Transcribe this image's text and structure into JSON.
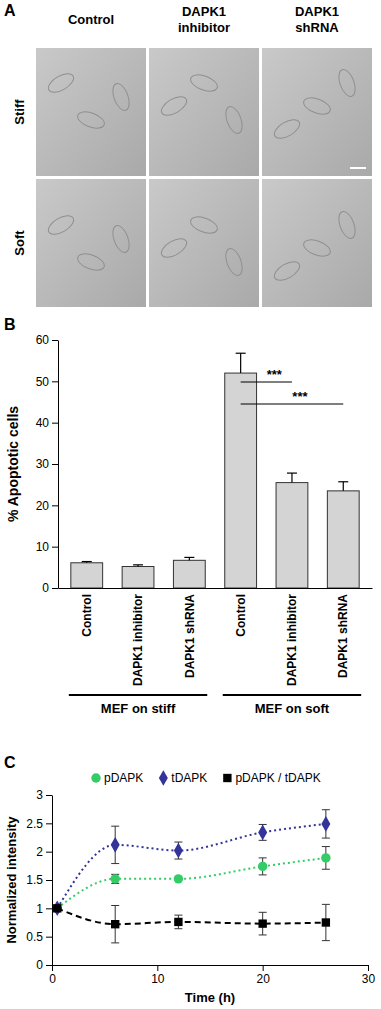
{
  "panel_a": {
    "label": "A",
    "columns": [
      "Control",
      "DAPK1 inhibitor",
      "DAPK1 shRNA"
    ],
    "rows": [
      "Stiff",
      "Soft"
    ]
  },
  "chart_data": [
    {
      "type": "bar",
      "title": "B",
      "categories": [
        "Control",
        "DAPK1 inhibitor",
        "DAPK1 shRNA",
        "Control",
        "DAPK1 inhibitor",
        "DAPK1 shRNA"
      ],
      "values": [
        6.1,
        5.2,
        6.7,
        52,
        25.5,
        23.5
      ],
      "errors": [
        0.3,
        0.4,
        0.7,
        4.8,
        2.3,
        2.2
      ],
      "color": "#d4d4d4",
      "ylim": [
        0,
        60
      ],
      "yticks": [
        0,
        10,
        20,
        30,
        40,
        50,
        60
      ],
      "y_label": "% Apoptotic cells",
      "groups": [
        {
          "label": "MEF on stiff",
          "from": 0,
          "to": 2
        },
        {
          "label": "MEF on soft",
          "from": 3,
          "to": 5
        }
      ],
      "annotations": [
        {
          "text": "***",
          "from": 3,
          "to": 4
        },
        {
          "text": "***",
          "from": 3,
          "to": 5
        }
      ]
    },
    {
      "type": "scatter",
      "title": "C",
      "x": [
        0.5,
        6,
        12,
        20,
        26
      ],
      "series": [
        {
          "name": "pDAPK",
          "color": "#33cc66",
          "marker": "circle",
          "line_style": "dotted",
          "values": [
            1,
            1.52,
            1.52,
            1.74,
            1.89
          ],
          "errors": [
            0,
            0.08,
            0,
            0.15,
            0.2
          ]
        },
        {
          "name": "tDAPK",
          "color": "#333399",
          "marker": "diamond",
          "line_style": "dotted",
          "values": [
            1,
            2.12,
            2.02,
            2.34,
            2.49
          ],
          "errors": [
            0,
            0.33,
            0.15,
            0.14,
            0.25
          ]
        },
        {
          "name": "pDAPK / tDAPK",
          "color": "#000000",
          "marker": "square",
          "line_style": "dashed",
          "values": [
            1,
            0.72,
            0.76,
            0.73,
            0.75
          ],
          "errors": [
            0,
            0.33,
            0.12,
            0.2,
            0.32
          ]
        }
      ],
      "xlim": [
        0,
        30
      ],
      "xticks": [
        0,
        10,
        20,
        30
      ],
      "ylim": [
        0,
        3
      ],
      "yticks": [
        0,
        0.5,
        1,
        1.5,
        2,
        2.5,
        3
      ],
      "x_label": "Time (h)",
      "y_label": "Normalized intensity",
      "legend": "top"
    }
  ]
}
